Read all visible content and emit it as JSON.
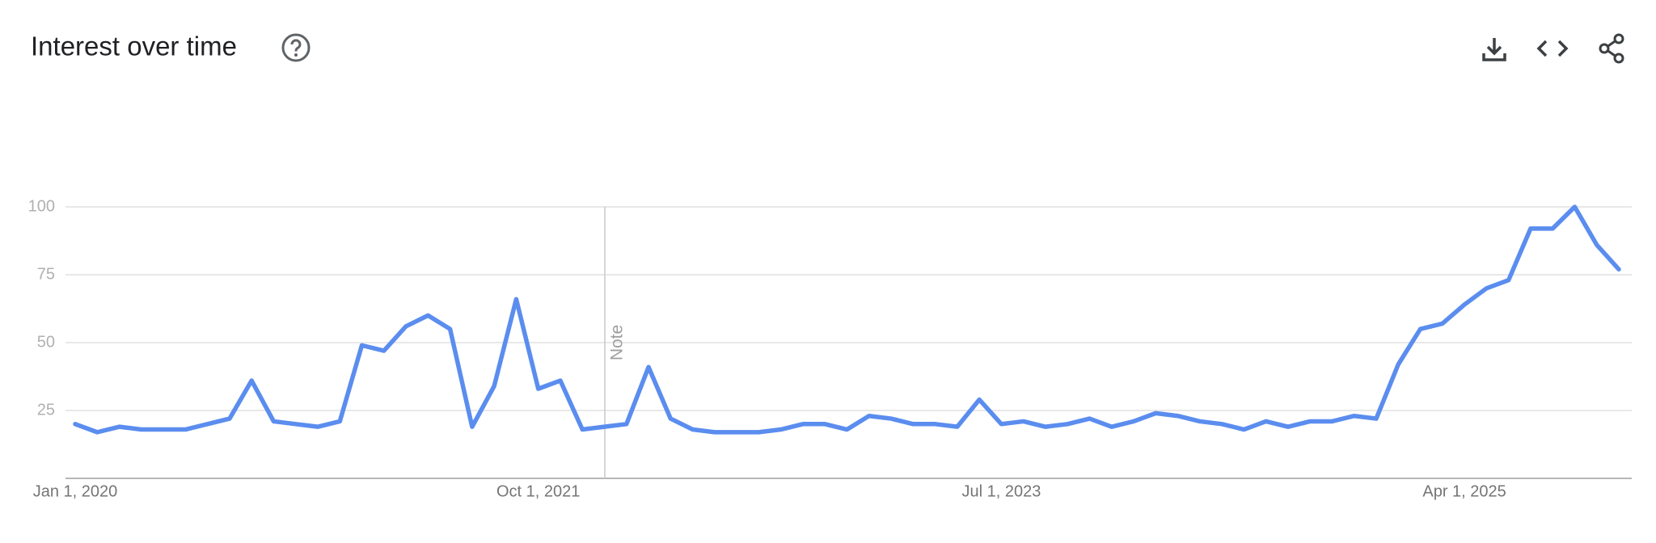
{
  "chart_data": {
    "type": "line",
    "title": "Interest over time",
    "annotation": "Note",
    "categories": [
      "Jan 1, 2020",
      null,
      null,
      null,
      null,
      null,
      null,
      null,
      null,
      null,
      null,
      null,
      null,
      null,
      null,
      null,
      null,
      null,
      null,
      null,
      null,
      "Oct 1, 2021",
      null,
      null,
      null,
      null,
      null,
      null,
      null,
      null,
      null,
      null,
      null,
      null,
      null,
      null,
      null,
      null,
      null,
      null,
      null,
      null,
      "Jul 1, 2023",
      null,
      null,
      null,
      null,
      null,
      null,
      null,
      null,
      null,
      null,
      null,
      null,
      null,
      null,
      null,
      null,
      null,
      null,
      null,
      null,
      "Apr 1, 2025",
      null,
      null,
      null,
      null,
      null,
      null,
      null
    ],
    "values": [
      20,
      17,
      19,
      18,
      18,
      18,
      20,
      22,
      36,
      21,
      20,
      19,
      21,
      49,
      47,
      56,
      60,
      55,
      19,
      34,
      66,
      33,
      36,
      18,
      19,
      20,
      41,
      22,
      18,
      17,
      17,
      17,
      18,
      20,
      20,
      18,
      23,
      22,
      20,
      20,
      19,
      29,
      20,
      21,
      19,
      20,
      22,
      19,
      21,
      24,
      23,
      21,
      20,
      18,
      21,
      19,
      21,
      21,
      23,
      22,
      42,
      55,
      57,
      64,
      70,
      73,
      92,
      92,
      100,
      86,
      77
    ],
    "color": "#5b8def",
    "ylim": [
      0,
      100
    ],
    "yticks": [
      25,
      50,
      75,
      100
    ],
    "grid": true
  }
}
